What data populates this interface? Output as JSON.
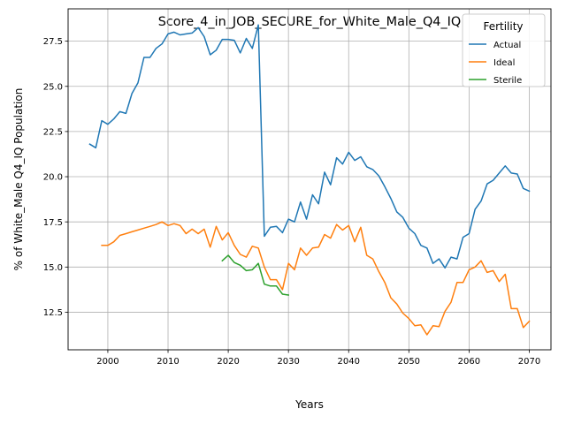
{
  "chart_data": {
    "type": "line",
    "title": "Score_4_in_JOB_SECURE_for_White_Male_Q4_IQ",
    "xlabel": "Years",
    "ylabel": "% of White_Male Q4_IQ Population",
    "xlim": [
      1993.4,
      2073.6
    ],
    "ylim": [
      10.42,
      29.29
    ],
    "xticks": [
      2000,
      2010,
      2020,
      2030,
      2040,
      2050,
      2060,
      2070
    ],
    "xtick_labels": [
      "2000",
      "2010",
      "2020",
      "2030",
      "2040",
      "2050",
      "2060",
      "2070"
    ],
    "yticks": [
      12.5,
      15.0,
      17.5,
      20.0,
      22.5,
      25.0,
      27.5
    ],
    "ytick_labels": [
      "12.5",
      "15.0",
      "17.5",
      "20.0",
      "22.5",
      "25.0",
      "27.5"
    ],
    "grid": true,
    "legend": {
      "title": "Fertility",
      "placement": "top-right"
    },
    "series": [
      {
        "name": "Actual",
        "color": "#1f77b4",
        "x": [
          1997,
          1998,
          1999,
          2000,
          2001,
          2002,
          2003,
          2004,
          2005,
          2006,
          2007,
          2008,
          2009,
          2010,
          2011,
          2012,
          2013,
          2014,
          2015,
          2016,
          2017,
          2018,
          2019,
          2020,
          2021,
          2022,
          2023,
          2024,
          2025,
          2026,
          2027,
          2028,
          2029,
          2030,
          2031,
          2032,
          2033,
          2034,
          2035,
          2036,
          2037,
          2038,
          2039,
          2040,
          2041,
          2042,
          2043,
          2044,
          2045,
          2046,
          2047,
          2048,
          2049,
          2050,
          2051,
          2052,
          2053,
          2054,
          2055,
          2056,
          2057,
          2058,
          2059,
          2060,
          2061,
          2062,
          2063,
          2064,
          2065,
          2066,
          2067,
          2068,
          2069,
          2070
        ],
        "values": [
          21.8,
          21.6,
          23.1,
          22.9,
          23.2,
          23.6,
          23.5,
          24.6,
          25.2,
          26.6,
          26.6,
          27.1,
          27.35,
          27.9,
          28.0,
          27.85,
          27.9,
          27.95,
          28.25,
          27.75,
          26.75,
          27.0,
          27.6,
          27.6,
          27.55,
          26.85,
          27.65,
          27.1,
          28.4,
          16.7,
          17.2,
          17.25,
          16.9,
          17.65,
          17.5,
          18.6,
          17.65,
          19.0,
          18.5,
          20.25,
          19.55,
          21.05,
          20.7,
          21.35,
          20.9,
          21.1,
          20.55,
          20.4,
          20.05,
          19.45,
          18.8,
          18.05,
          17.75,
          17.15,
          16.85,
          16.2,
          16.05,
          15.2,
          15.45,
          14.95,
          15.55,
          15.45,
          16.65,
          16.85,
          18.2,
          18.65,
          19.6,
          19.8,
          20.2,
          20.6,
          20.2,
          20.15,
          19.35,
          19.2
        ]
      },
      {
        "name": "Ideal",
        "color": "#ff7f0e",
        "x": [
          1999,
          2000,
          2001,
          2002,
          2003,
          2004,
          2005,
          2006,
          2007,
          2008,
          2009,
          2010,
          2011,
          2012,
          2013,
          2014,
          2015,
          2016,
          2017,
          2018,
          2019,
          2020,
          2021,
          2022,
          2023,
          2024,
          2025,
          2026,
          2027,
          2028,
          2029,
          2030,
          2031,
          2032,
          2033,
          2034,
          2035,
          2036,
          2037,
          2038,
          2039,
          2040,
          2041,
          2042,
          2043,
          2044,
          2045,
          2046,
          2047,
          2048,
          2049,
          2050,
          2051,
          2052,
          2053,
          2054,
          2055,
          2056,
          2057,
          2058,
          2059,
          2060,
          2061,
          2062,
          2063,
          2064,
          2065,
          2066,
          2067,
          2068,
          2069,
          2070
        ],
        "values": [
          16.2,
          16.2,
          16.4,
          16.75,
          16.85,
          16.95,
          17.05,
          17.15,
          17.25,
          17.35,
          17.5,
          17.3,
          17.4,
          17.3,
          16.85,
          17.1,
          16.85,
          17.1,
          16.1,
          17.25,
          16.5,
          16.9,
          16.2,
          15.7,
          15.55,
          16.15,
          16.05,
          15.0,
          14.3,
          14.3,
          13.75,
          15.2,
          14.85,
          16.05,
          15.65,
          16.05,
          16.1,
          16.8,
          16.6,
          17.35,
          17.05,
          17.3,
          16.4,
          17.2,
          15.65,
          15.45,
          14.75,
          14.15,
          13.3,
          12.95,
          12.45,
          12.15,
          11.75,
          11.8,
          11.25,
          11.75,
          11.7,
          12.55,
          13.05,
          14.15,
          14.15,
          14.85,
          15.0,
          15.35,
          14.7,
          14.8,
          14.2,
          14.6,
          12.7,
          12.7,
          11.65,
          12.0
        ]
      },
      {
        "name": "Sterile",
        "color": "#2ca02c",
        "x": [
          2019,
          2020,
          2021,
          2022,
          2023,
          2024,
          2025,
          2026,
          2027,
          2028,
          2029,
          2030
        ],
        "values": [
          15.35,
          15.65,
          15.25,
          15.1,
          14.8,
          14.85,
          15.2,
          14.05,
          13.95,
          13.95,
          13.5,
          13.45
        ]
      }
    ]
  }
}
